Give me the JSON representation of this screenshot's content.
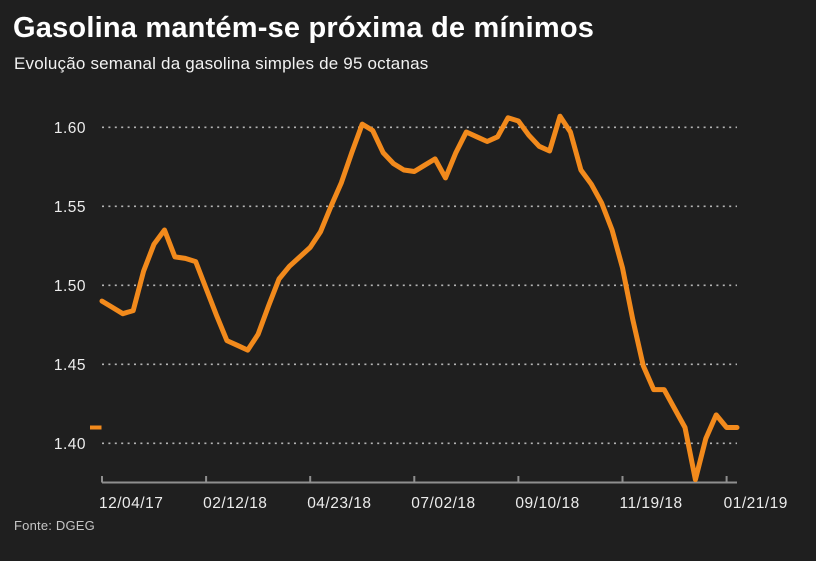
{
  "chart_data": {
    "type": "line",
    "title": "Gasolina mantém-se próxima de mínimos",
    "subtitle": "Evolução semanal da gasolina simples de 95 octanas",
    "source": "Fonte: DGEG",
    "legend": "none",
    "grid": "dotted-horizontal",
    "y_axis": {
      "tick_values": [
        1.4,
        1.45,
        1.5,
        1.55,
        1.6
      ],
      "tick_labels": [
        "1.40",
        "1.45",
        "1.50",
        "1.55",
        "1.60"
      ],
      "range": [
        1.375,
        1.62
      ]
    },
    "x_axis": {
      "tick_labels": [
        "12/04/17",
        "02/12/18",
        "04/23/18",
        "07/02/18",
        "09/10/18",
        "11/19/18",
        "01/21/19"
      ],
      "tick_weeks": [
        0,
        10,
        20,
        30,
        40,
        50,
        60
      ],
      "total_weeks": 61
    },
    "values": [
      1.49,
      1.486,
      1.482,
      1.484,
      1.509,
      1.526,
      1.535,
      1.518,
      1.517,
      1.515,
      1.498,
      1.481,
      1.465,
      1.462,
      1.459,
      1.469,
      1.487,
      1.504,
      1.512,
      1.518,
      1.524,
      1.534,
      1.55,
      1.565,
      1.584,
      1.602,
      1.598,
      1.584,
      1.577,
      1.573,
      1.572,
      1.576,
      1.58,
      1.568,
      1.584,
      1.597,
      1.594,
      1.591,
      1.594,
      1.606,
      1.604,
      1.595,
      1.588,
      1.585,
      1.607,
      1.597,
      1.573,
      1.564,
      1.552,
      1.535,
      1.511,
      1.478,
      1.449,
      1.434,
      1.434,
      1.422,
      1.41,
      1.377,
      1.403,
      1.418,
      1.41,
      1.41
    ],
    "last_value_marker": 1.41,
    "colors": {
      "line": "#F28A1C",
      "background": "#1F1F1F",
      "grid": "#CFCFCF",
      "axis": "#8F8F8F",
      "text": "#FFFFFF",
      "tick_text": "#ECECEC",
      "muted_text": "#C6C6C6"
    }
  }
}
